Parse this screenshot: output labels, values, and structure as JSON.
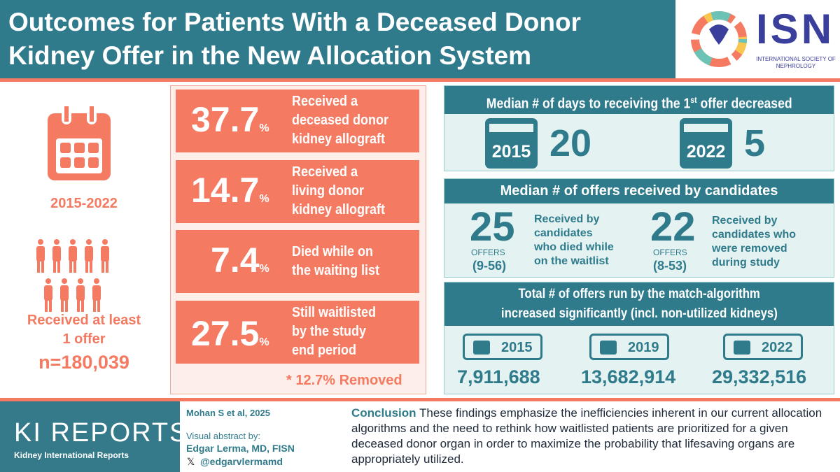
{
  "header": {
    "title": "Outcomes for Patients With a Deceased Donor Kidney Offer in the New Allocation System",
    "logo": {
      "name": "ISN",
      "subtitle": "INTERNATIONAL SOCIETY OF NEPHROLOGY"
    }
  },
  "left": {
    "period": "2015-2022",
    "received_line1": "Received at least",
    "received_line2": "1 offer",
    "n": "n=180,039"
  },
  "outcomes": [
    {
      "value": "37.7",
      "unit": "%",
      "lines": [
        "Received a",
        "deceased donor",
        "kidney allograft"
      ]
    },
    {
      "value": "14.7",
      "unit": "%",
      "lines": [
        "Received a",
        "living donor",
        "kidney allograft"
      ]
    },
    {
      "value": "7.4",
      "unit": "%",
      "lines": [
        "Died while on",
        "the waiting list"
      ]
    },
    {
      "value": "27.5",
      "unit": "%",
      "lines": [
        "Still waitlisted",
        "by the study",
        "end period"
      ]
    }
  ],
  "footnote": "* 12.7%  Removed",
  "days": {
    "title": "Median # of days to receiving the 1",
    "title_sup": "st",
    "title_end": " offer decreased",
    "items": [
      {
        "year": "2015",
        "value": "20"
      },
      {
        "year": "2022",
        "value": "5"
      }
    ]
  },
  "offers": {
    "title": "Median # of offers received by candidates",
    "unit": "OFFERS",
    "items": [
      {
        "value": "25",
        "range": "(9-56)",
        "lines": [
          "Received by",
          "candidates",
          "who died while",
          "on the waitlist"
        ]
      },
      {
        "value": "22",
        "range": "(8-53)",
        "lines": [
          "Received by",
          "candidates who",
          "were removed",
          "during study"
        ]
      }
    ]
  },
  "total": {
    "title_line1": "Total # of offers run by the match-algorithm",
    "title_line2": "increased significantly (incl. non-utilized kidneys)",
    "items": [
      {
        "year": "2015",
        "value": "7,911,688"
      },
      {
        "year": "2019",
        "value": "13,682,914"
      },
      {
        "year": "2022",
        "value": "29,332,516"
      }
    ]
  },
  "footer": {
    "journal": "KI REPORTS",
    "journal_sub": "Kidney International Reports",
    "citation": "Mohan S et al, 2025",
    "by_label": "Visual abstract by:",
    "author": "Edgar Lerma, MD, FISN",
    "handle": "@edgarvlermamd",
    "conclusion_label": "Conclusion",
    "conclusion": " These findings emphasize the inefficiencies inherent in our current allocation algorithms and the need to rethink how waitlisted patients are prioritized for a given deceased donor organ in order to maximize the probability that lifesaving organs are appropriately utilized."
  },
  "colors": {
    "teal": "#2f7b8c",
    "coral": "#f47a62",
    "light": "#e4f3f2"
  }
}
